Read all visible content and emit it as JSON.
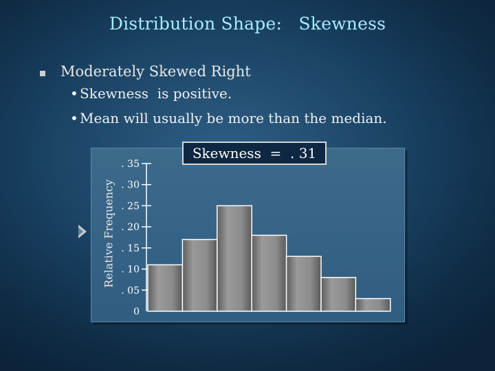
{
  "slide": {
    "title": "Distribution Shape:   Skewness",
    "bullet": "Moderately Skewed Right",
    "subbullets": [
      "Skewness  is positive.",
      "Mean will usually be more than the median."
    ],
    "annotation": "Skewness  =  . 31"
  },
  "icons": {
    "bullet": "square-bullet-icon",
    "subbullet": "dot-bullet-icon",
    "arrow": "play-arrow-icon"
  },
  "colors": {
    "title": "#a7ecff",
    "background": "#1b4466",
    "bar": "#8a8a8a"
  },
  "chart_data": {
    "type": "bar",
    "title": "",
    "xlabel": "",
    "ylabel": "Relative Frequency",
    "ylim": [
      0,
      0.35
    ],
    "yticks": [
      0,
      0.05,
      0.1,
      0.15,
      0.2,
      0.25,
      0.3,
      0.35
    ],
    "ytick_labels": [
      "0",
      ". 05",
      ". 10",
      ". 15",
      ". 20",
      ". 25",
      ". 30",
      ". 35"
    ],
    "values": [
      0.11,
      0.17,
      0.25,
      0.18,
      0.13,
      0.08,
      0.03
    ],
    "grid": false,
    "legend": "none"
  }
}
